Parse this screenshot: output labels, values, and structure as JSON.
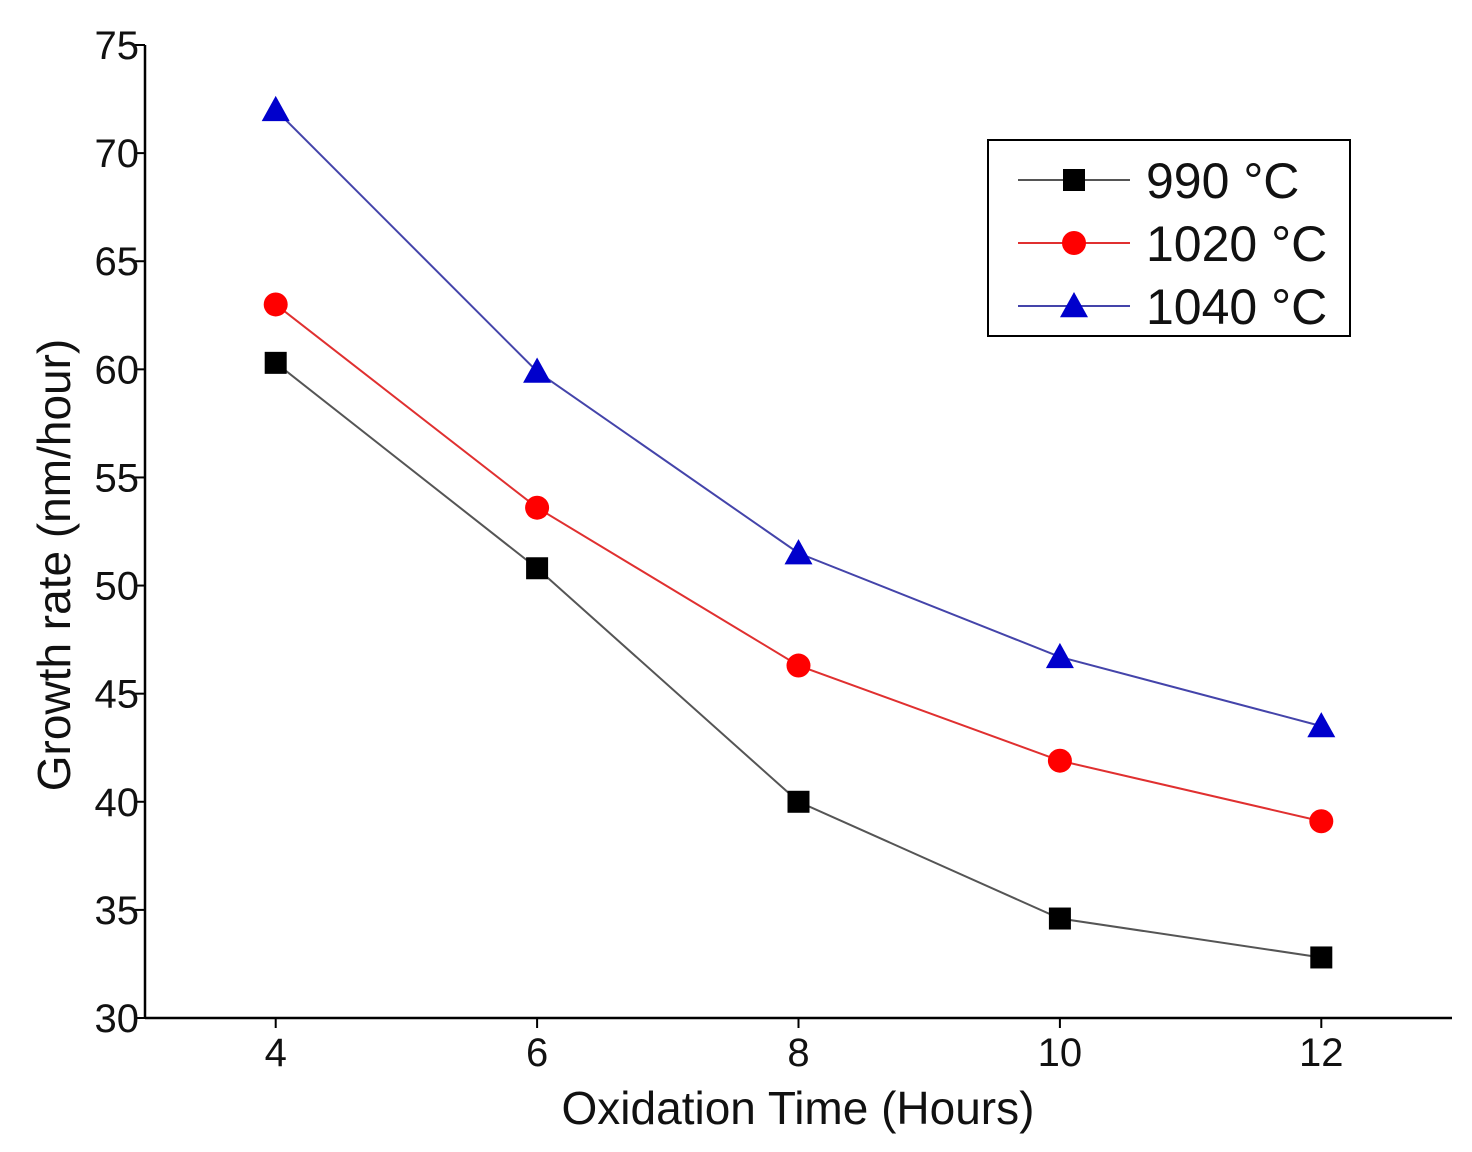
{
  "chart_data": {
    "type": "line",
    "xlabel": "Oxidation Time (Hours)",
    "ylabel": "Growth rate (nm/hour)",
    "xlim": [
      3.0,
      13.0
    ],
    "ylim": [
      30,
      75
    ],
    "xticks": [
      4,
      6,
      8,
      10,
      12
    ],
    "yticks": [
      30,
      35,
      40,
      45,
      50,
      55,
      60,
      65,
      70,
      75
    ],
    "grid": false,
    "legend_position": "top-right",
    "x": [
      4,
      6,
      8,
      10,
      12
    ],
    "series": [
      {
        "name": "990 °C",
        "marker": "square",
        "color": "#000000",
        "line_color": "#555555",
        "values": [
          60.3,
          50.8,
          40.0,
          34.6,
          32.8
        ]
      },
      {
        "name": "1020 °C",
        "marker": "circle",
        "color": "#ff0000",
        "line_color": "#e03030",
        "values": [
          63.0,
          53.6,
          46.3,
          41.9,
          39.1
        ]
      },
      {
        "name": "1040 °C",
        "marker": "triangle",
        "color": "#0000cc",
        "line_color": "#4444aa",
        "values": [
          72.0,
          59.9,
          51.5,
          46.7,
          43.5
        ]
      }
    ]
  }
}
